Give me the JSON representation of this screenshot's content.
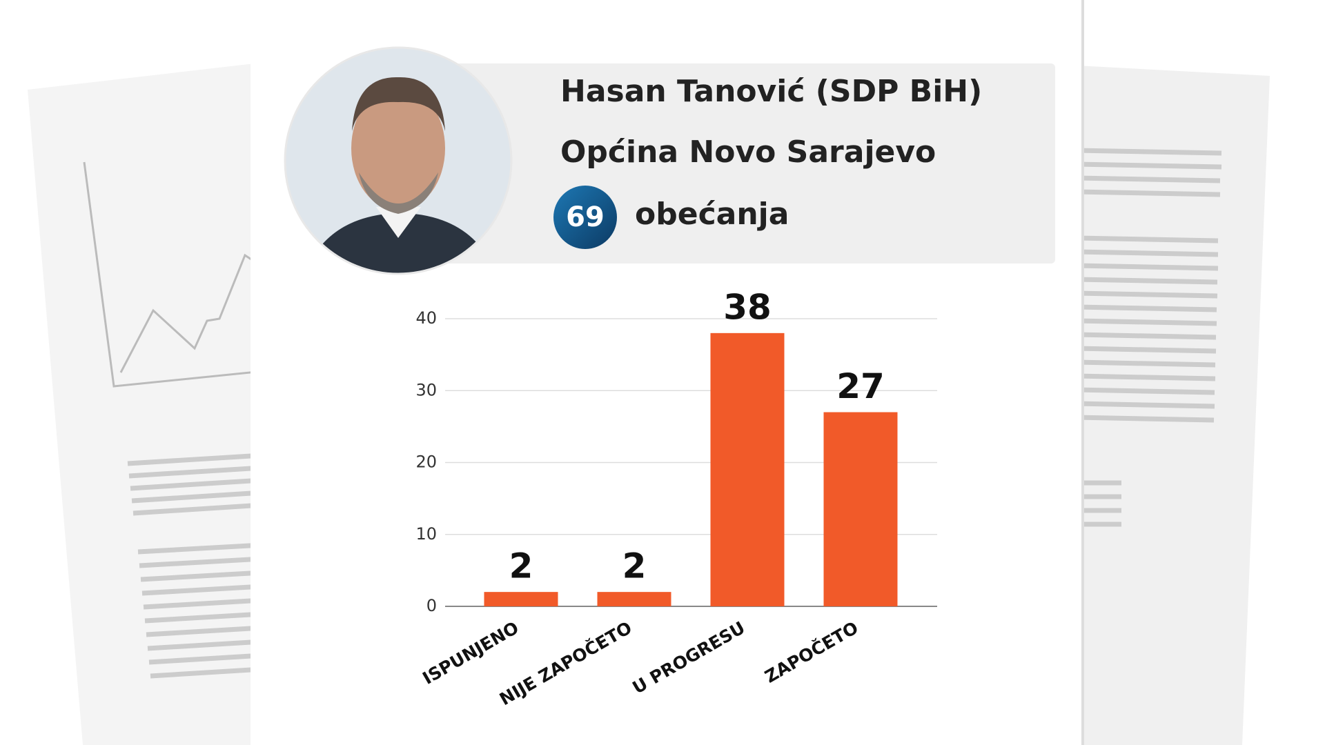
{
  "chart_data": {
    "type": "bar",
    "title": "Hasan Tanović (SDP BiH)",
    "subtitle": "Općina Novo Sarajevo",
    "total": 69,
    "total_label": "obećanja",
    "categories": [
      "ISPUNJENO",
      "NIJE ZAPOČETO",
      "U PROGRESU",
      "ZAPOČETO"
    ],
    "values": [
      2,
      2,
      38,
      27
    ],
    "color": "#f15a29",
    "ylim": [
      0,
      40
    ],
    "yticks": [
      0,
      10,
      20,
      30,
      40
    ],
    "grid": true
  }
}
